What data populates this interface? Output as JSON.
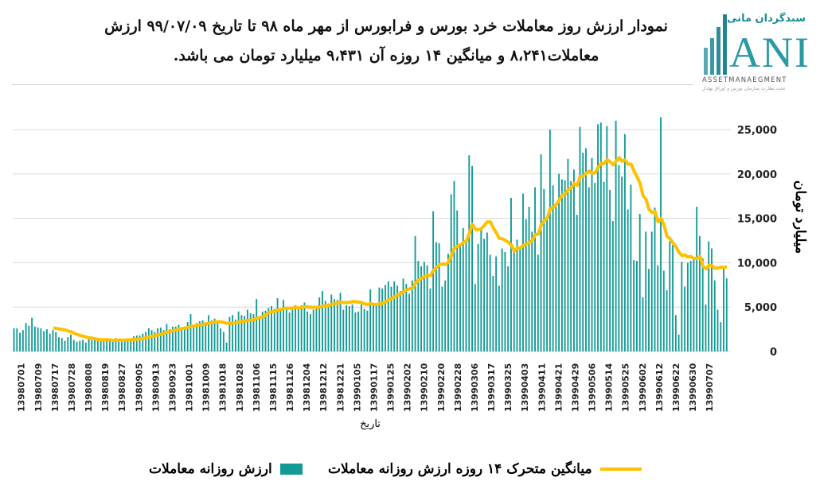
{
  "title": {
    "line1": "نمودار ارزش روز معاملات خرد بورس و فرابورس از مهر ماه ۹۸ تا تاریخ ۹۹/۰۷/۰۹ ارزش",
    "line2": "معاملات۸،۲۴۱ و میانگین ۱۴ روزه آن ۹،۴۳۱ میلیارد تومان می باشد."
  },
  "logo": {
    "fa": "سبدگردان مانی",
    "mark": "ANI",
    "en": "ASSETMANAEGMENT",
    "sub": "تحت نظارت سازمان بورس و اوراق بهادار"
  },
  "colors": {
    "bar": "#139a96",
    "line": "#ffc000",
    "grid": "#d9d9d9"
  },
  "chart_data": {
    "type": "bar+line",
    "xlabel": "تاریخ",
    "ylabel": "میلیارد تومان",
    "ylim": [
      0,
      27000
    ],
    "yticks": [
      0,
      5000,
      10000,
      15000,
      20000,
      25000
    ],
    "ytick_labels": [
      "0",
      "5,000",
      "10,000",
      "15,000",
      "20,000",
      "25,000"
    ],
    "grid": true,
    "legend_position": "bottom",
    "x_tick_labels": [
      "13980701",
      "13980709",
      "13980717",
      "13980728",
      "13980808",
      "13980819",
      "13980827",
      "13980905",
      "13980913",
      "13980923",
      "13981001",
      "13981009",
      "13981018",
      "13981028",
      "13981106",
      "13981115",
      "13981126",
      "13981204",
      "13981212",
      "13981221",
      "13990105",
      "13990117",
      "13990125",
      "13990202",
      "13990210",
      "13990220",
      "13990228",
      "13990306",
      "13990317",
      "13990325",
      "13990403",
      "13990411",
      "13990421",
      "13990429",
      "13990506",
      "13990514",
      "13990525",
      "13990602",
      "13990612",
      "13990622",
      "13990630",
      "13990707"
    ],
    "series": [
      {
        "name": "ارزش روزانه معاملات",
        "type": "bar",
        "values": [
          2600,
          2600,
          2100,
          2400,
          3200,
          2900,
          3800,
          2800,
          2700,
          2600,
          2300,
          2500,
          2000,
          2400,
          2200,
          1600,
          1500,
          1200,
          1600,
          1900,
          1300,
          1100,
          1200,
          1300,
          1000,
          1400,
          1300,
          1400,
          1200,
          1200,
          1300,
          1400,
          1200,
          1300,
          1500,
          1400,
          1100,
          1200,
          1400,
          1500,
          1700,
          1800,
          1800,
          2000,
          2200,
          2600,
          2400,
          2200,
          2600,
          2700,
          2400,
          3100,
          2500,
          2800,
          2800,
          3000,
          2700,
          2800,
          3300,
          4200,
          3000,
          3200,
          3400,
          3500,
          3300,
          4100,
          3500,
          3700,
          3200,
          2600,
          2200,
          1000,
          3900,
          4100,
          3600,
          4500,
          4100,
          4000,
          4700,
          4300,
          4200,
          5900,
          4000,
          4500,
          4600,
          4900,
          5100,
          4800,
          6000,
          4700,
          5800,
          4900,
          4400,
          4700,
          5200,
          4800,
          5200,
          5500,
          4500,
          4200,
          4700,
          5000,
          6100,
          6800,
          5700,
          5400,
          6400,
          5900,
          5800,
          6600,
          4700,
          5200,
          5100,
          5300,
          4400,
          4500,
          5300,
          4800,
          4600,
          7000,
          5200,
          5300,
          7200,
          7100,
          7500,
          7900,
          7300,
          7900,
          7400,
          6800,
          8200,
          7600,
          6500,
          8000,
          13000,
          10200,
          9600,
          10100,
          9700,
          7100,
          15800,
          12300,
          12200,
          7300,
          8000,
          11000,
          17700,
          19200,
          15900,
          11900,
          13900,
          12400,
          22100,
          20900,
          7600,
          12100,
          13700,
          12700,
          13400,
          10900,
          8500,
          10700,
          7400,
          11600,
          11200,
          9600,
          17300,
          11600,
          12600,
          11700,
          17800,
          14900,
          16300,
          13500,
          18500,
          10900,
          22200,
          18300,
          15000,
          25000,
          18700,
          16300,
          20000,
          19400,
          19300,
          21700,
          19200,
          20500,
          15400,
          25300,
          22400,
          22900,
          18500,
          21800,
          19000,
          25600,
          25800,
          19100,
          25400,
          18200,
          14700,
          26000,
          21000,
          19700,
          24500,
          16000,
          18800,
          10300,
          10200,
          15500,
          6100,
          13500,
          9300,
          13500,
          16200,
          9700,
          26400,
          9100,
          6900,
          12400,
          12000,
          4100,
          1900,
          10100,
          7300,
          10000,
          10200,
          10400,
          16300,
          13000,
          10500,
          5300,
          12400,
          11600,
          8000,
          4700,
          3300,
          9600,
          8241
        ]
      },
      {
        "name": "میانگین متحرک ۱۴ روزه ارزش روزانه معاملات",
        "type": "line",
        "window": 14,
        "last_value": 9431
      }
    ]
  }
}
